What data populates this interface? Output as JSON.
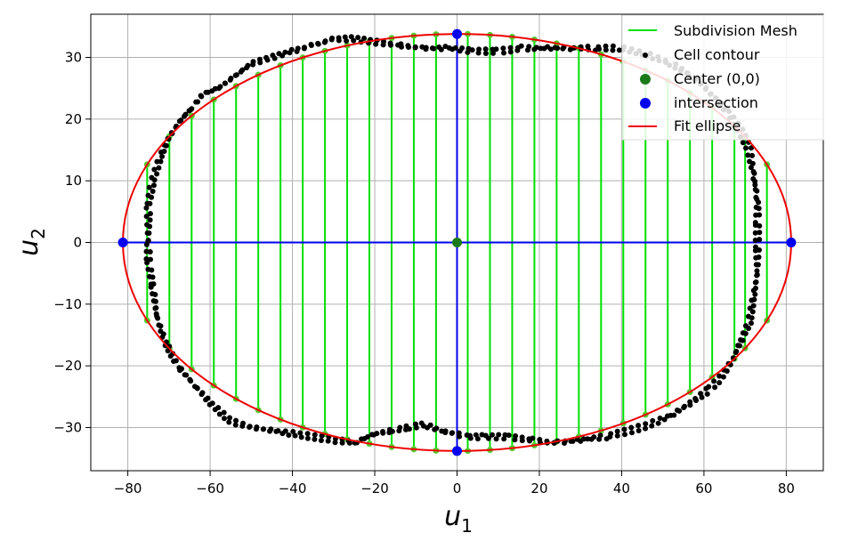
{
  "chart_data": {
    "type": "scatter",
    "xlabel": {
      "base": "u",
      "sub": "1"
    },
    "ylabel": {
      "base": "u",
      "sub": "2"
    },
    "xlim": [
      -89,
      89
    ],
    "ylim": [
      -37,
      37
    ],
    "xticks": [
      -80,
      -60,
      -40,
      -20,
      0,
      20,
      40,
      60,
      80
    ],
    "yticks": [
      -30,
      -20,
      -10,
      0,
      10,
      20,
      30
    ],
    "xtick_labels": [
      "−80",
      "−60",
      "−40",
      "−20",
      "0",
      "20",
      "40",
      "60",
      "80"
    ],
    "ytick_labels": [
      "−30",
      "−20",
      "−10",
      "0",
      "10",
      "20",
      "30"
    ],
    "grid": true,
    "legend_position": "top-right",
    "legend": [
      {
        "label": "Subdivision Mesh",
        "kind": "line",
        "color": "#00e000"
      },
      {
        "label": "Cell contour",
        "kind": "dot-small",
        "color": "#000000"
      },
      {
        "label": "Center (0,0)",
        "kind": "dot",
        "color": "#1a7a1a"
      },
      {
        "label": "intersection",
        "kind": "dot",
        "color": "#0000ee"
      },
      {
        "label": "Fit ellipse",
        "kind": "line",
        "color": "#ee0000"
      }
    ],
    "ellipse": {
      "cx": 0,
      "cy": 0,
      "a": 81.2,
      "b": 33.8,
      "color": "#ee0000"
    },
    "mesh": {
      "color": "#00e000",
      "x": [
        -75.3,
        -69.9,
        -64.5,
        -59.1,
        -53.7,
        -48.3,
        -42.9,
        -37.5,
        -32.1,
        -26.7,
        -21.3,
        -15.9,
        -10.5,
        -5.1,
        2.6,
        8.0,
        13.4,
        18.8,
        24.2,
        29.6,
        35.0,
        40.4,
        45.8,
        51.2,
        56.6,
        62.0,
        67.4,
        70.0,
        75.3
      ]
    },
    "center": {
      "x": 0,
      "y": 0,
      "color": "#1a7a1a"
    },
    "intersections": {
      "color": "#0000ee",
      "points": [
        [
          -81.2,
          0
        ],
        [
          81.2,
          0
        ],
        [
          0,
          33.8
        ],
        [
          0,
          -33.8
        ]
      ]
    },
    "contour": {
      "color": "#000000",
      "points": [
        [
          -75,
          0
        ],
        [
          -75,
          6
        ],
        [
          -74,
          10
        ],
        [
          -72,
          14
        ],
        [
          -70,
          17
        ],
        [
          -67,
          20
        ],
        [
          -64,
          22
        ],
        [
          -62,
          24
        ],
        [
          -58,
          25
        ],
        [
          -54,
          27
        ],
        [
          -50,
          29
        ],
        [
          -45,
          30
        ],
        [
          -40,
          31
        ],
        [
          -35,
          32
        ],
        [
          -30,
          33
        ],
        [
          -25,
          33
        ],
        [
          -20,
          32.5
        ],
        [
          -14,
          32
        ],
        [
          -8,
          31.5
        ],
        [
          -2,
          31.5
        ],
        [
          4,
          31
        ],
        [
          10,
          31
        ],
        [
          16,
          31.5
        ],
        [
          22,
          31.5
        ],
        [
          28,
          31.5
        ],
        [
          34,
          31.5
        ],
        [
          40,
          31.5
        ],
        [
          46,
          30.5
        ],
        [
          52,
          29
        ],
        [
          57,
          27
        ],
        [
          62,
          24
        ],
        [
          66,
          21
        ],
        [
          69,
          18
        ],
        [
          71,
          15
        ],
        [
          72,
          11
        ],
        [
          73,
          7
        ],
        [
          73,
          3
        ],
        [
          73,
          -1
        ],
        [
          73,
          -5
        ],
        [
          72,
          -9
        ],
        [
          71,
          -13
        ],
        [
          69,
          -16
        ],
        [
          67,
          -19
        ],
        [
          64,
          -22
        ],
        [
          61,
          -24
        ],
        [
          57,
          -26
        ],
        [
          52,
          -28
        ],
        [
          47,
          -29.5
        ],
        [
          42,
          -30.5
        ],
        [
          36,
          -31.5
        ],
        [
          30,
          -32
        ],
        [
          24,
          -32.5
        ],
        [
          18,
          -32
        ],
        [
          12,
          -31.5
        ],
        [
          6,
          -31.5
        ],
        [
          2,
          -31.5
        ],
        [
          0,
          -31
        ],
        [
          -4,
          -30.5
        ],
        [
          -8,
          -29.5
        ],
        [
          -12,
          -30
        ],
        [
          -16,
          -30.5
        ],
        [
          -20,
          -31
        ],
        [
          -25,
          -32.5
        ],
        [
          -30,
          -32
        ],
        [
          -35,
          -31.5
        ],
        [
          -40,
          -31
        ],
        [
          -45,
          -30.5
        ],
        [
          -50,
          -30
        ],
        [
          -55,
          -29
        ],
        [
          -60,
          -26
        ],
        [
          -64,
          -23
        ],
        [
          -68,
          -20
        ],
        [
          -71,
          -16
        ],
        [
          -73,
          -12
        ],
        [
          -74,
          -7
        ],
        [
          -75,
          -3
        ],
        [
          -75,
          0
        ]
      ]
    }
  }
}
